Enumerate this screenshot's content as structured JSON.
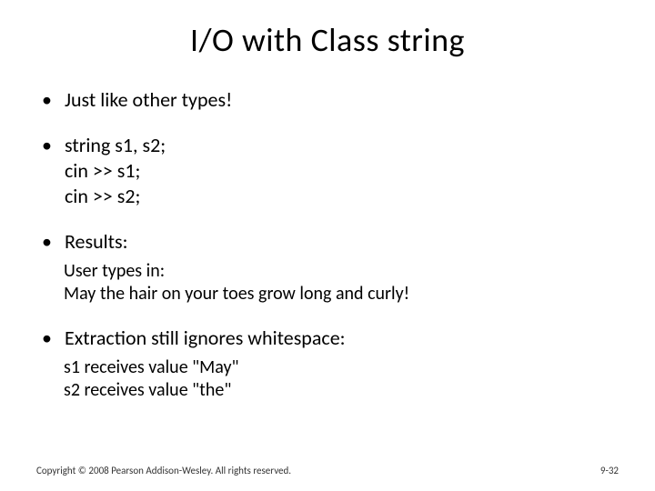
{
  "title": "I/O with Class string",
  "bullets": {
    "b1": "Just like other types!",
    "b2_l1": "string s1, s2;",
    "b2_l2": "cin >> s1;",
    "b2_l3": "cin >> s2;",
    "b3": "Results:",
    "b3_sub1": "User types in:",
    "b3_sub2": "May the hair on your toes grow long and curly!",
    "b4": "Extraction still ignores whitespace:",
    "b4_sub1": "s1 receives value \"May\"",
    "b4_sub2": "s2 receives value \"the\""
  },
  "footer": {
    "copyright": "Copyright © 2008 Pearson Addison-Wesley. All rights reserved.",
    "page": "9-32"
  },
  "style": {
    "background_color": "#ffffff",
    "text_color": "#000000",
    "title_fontsize": 36,
    "body_fontsize": 22,
    "sub_fontsize": 20,
    "footer_fontsize": 11,
    "font_family": "Calibri"
  }
}
